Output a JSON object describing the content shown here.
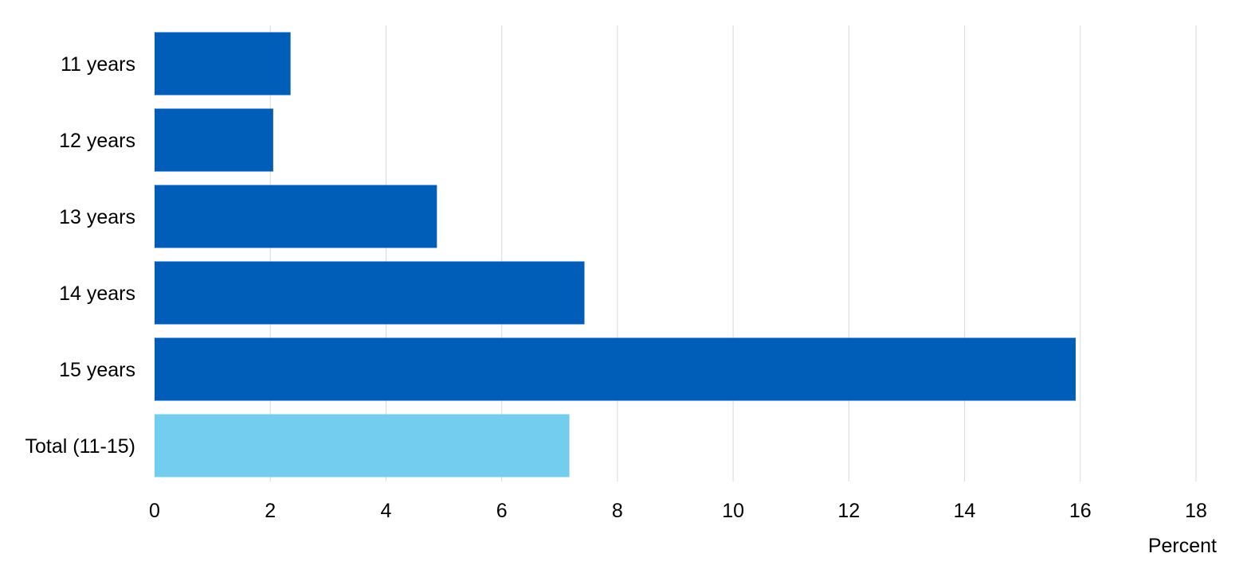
{
  "chart_data": {
    "type": "bar",
    "orientation": "horizontal",
    "title": "",
    "xlabel": "Percent",
    "ylabel": "",
    "categories": [
      "11 years",
      "12 years",
      "13 years",
      "14 years",
      "15 years",
      "Total (11-15)"
    ],
    "values": [
      2.35,
      2.05,
      4.88,
      7.43,
      15.92,
      7.17
    ],
    "bar_colors": [
      "#005EB8",
      "#005EB8",
      "#005EB8",
      "#005EB8",
      "#005EB8",
      "#72CDEF"
    ],
    "xlim": [
      0,
      18
    ],
    "xticks": [
      "0",
      "2",
      "4",
      "6",
      "8",
      "10",
      "12",
      "14",
      "16",
      "18"
    ],
    "grid": "vertical",
    "legend": "none"
  }
}
